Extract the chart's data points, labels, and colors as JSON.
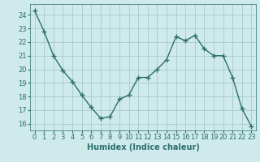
{
  "x": [
    0,
    1,
    2,
    3,
    4,
    5,
    6,
    7,
    8,
    9,
    10,
    11,
    12,
    13,
    14,
    15,
    16,
    17,
    18,
    19,
    20,
    21,
    22,
    23
  ],
  "y": [
    24.3,
    22.8,
    21.0,
    19.9,
    19.1,
    18.1,
    17.2,
    16.4,
    16.5,
    17.8,
    18.1,
    19.4,
    19.4,
    20.0,
    20.7,
    22.4,
    22.1,
    22.5,
    21.5,
    21.0,
    21.0,
    19.4,
    17.1,
    15.8
  ],
  "line_color": "#2d6e6e",
  "marker": "+",
  "marker_size": 4,
  "marker_lw": 1.0,
  "line_width": 1.0,
  "bg_color": "#ceeaea",
  "grid_color": "#aacaca",
  "xlabel": "Humidex (Indice chaleur)",
  "ylim": [
    15.5,
    24.8
  ],
  "xlim": [
    -0.5,
    23.5
  ],
  "yticks": [
    16,
    17,
    18,
    19,
    20,
    21,
    22,
    23,
    24
  ],
  "xticks": [
    0,
    1,
    2,
    3,
    4,
    5,
    6,
    7,
    8,
    9,
    10,
    11,
    12,
    13,
    14,
    15,
    16,
    17,
    18,
    19,
    20,
    21,
    22,
    23
  ],
  "tick_fontsize": 6,
  "xlabel_fontsize": 7
}
